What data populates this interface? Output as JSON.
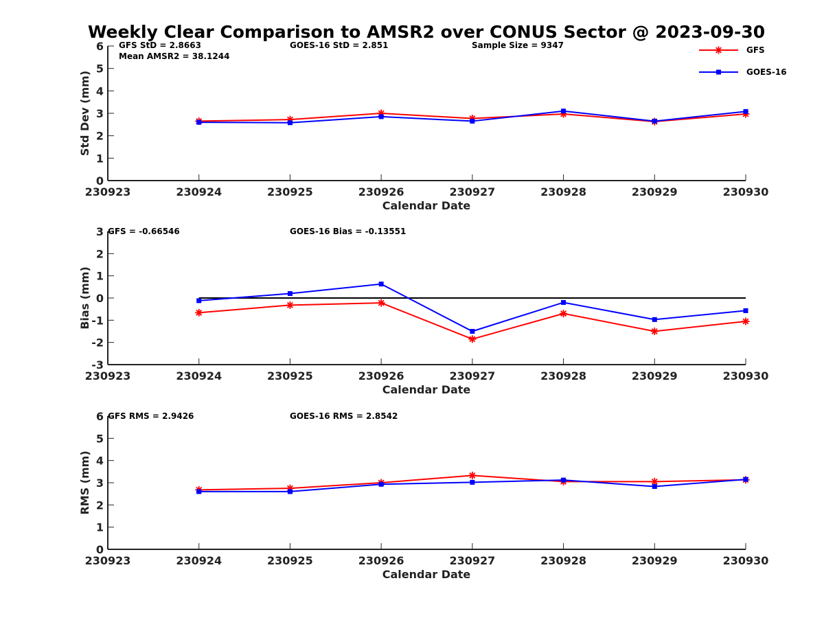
{
  "title": "Weekly Clear Comparison to AMSR2 over CONUS Sector @ 2023-09-30",
  "legend": [
    {
      "name": "GFS",
      "color": "#ff0000",
      "marker": "asterisk"
    },
    {
      "name": "GOES-16",
      "color": "#0000ff",
      "marker": "square"
    }
  ],
  "chart_data": [
    {
      "type": "line",
      "ylabel": "Std Dev (mm)",
      "xlabel": "Calendar Date",
      "x_ticks": [
        "230923",
        "230924",
        "230925",
        "230926",
        "230927",
        "230928",
        "230929",
        "230930"
      ],
      "ylim": [
        0,
        6
      ],
      "y_ticks": [
        "0",
        "1",
        "2",
        "3",
        "4",
        "5",
        "6"
      ],
      "stats": [
        "GFS StD = 2.8663",
        "Mean AMSR2 = 38.1244",
        "GOES-16 StD = 2.851",
        "Sample Size = 9347"
      ],
      "series": [
        {
          "name": "GFS",
          "values": [
            2.65,
            2.72,
            3.0,
            2.77,
            2.97,
            2.63,
            2.97
          ]
        },
        {
          "name": "GOES-16",
          "values": [
            2.6,
            2.58,
            2.85,
            2.65,
            3.1,
            2.65,
            3.08
          ]
        }
      ],
      "x": [
        "230924",
        "230925",
        "230926",
        "230927",
        "230928",
        "230929",
        "230930"
      ],
      "grid": false
    },
    {
      "type": "line",
      "ylabel": "Bias (mm)",
      "xlabel": "Calendar Date",
      "x_ticks": [
        "230923",
        "230924",
        "230925",
        "230926",
        "230927",
        "230928",
        "230929",
        "230930"
      ],
      "ylim": [
        -3,
        3
      ],
      "y_ticks": [
        "-3",
        "-2",
        "-1",
        "0",
        "1",
        "2",
        "3"
      ],
      "stats": [
        "GFS = -0.66546",
        "GOES-16 Bias  = -0.13551"
      ],
      "reference_line": 0,
      "series": [
        {
          "name": "GFS",
          "values": [
            -0.66,
            -0.32,
            -0.22,
            -1.85,
            -0.7,
            -1.5,
            -1.05
          ]
        },
        {
          "name": "GOES-16",
          "values": [
            -0.12,
            0.2,
            0.63,
            -1.5,
            -0.2,
            -0.97,
            -0.57
          ]
        }
      ],
      "x": [
        "230924",
        "230925",
        "230926",
        "230927",
        "230928",
        "230929",
        "230930"
      ],
      "grid": false
    },
    {
      "type": "line",
      "ylabel": "RMS (mm)",
      "xlabel": "Calendar Date",
      "x_ticks": [
        "230923",
        "230924",
        "230925",
        "230926",
        "230927",
        "230928",
        "230929",
        "230930"
      ],
      "ylim": [
        0,
        6
      ],
      "y_ticks": [
        "0",
        "1",
        "2",
        "3",
        "4",
        "5",
        "6"
      ],
      "stats": [
        "GFS RMS = 2.9426",
        "GOES-16 RMS = 2.8542"
      ],
      "series": [
        {
          "name": "GFS",
          "values": [
            2.68,
            2.75,
            3.0,
            3.33,
            3.05,
            3.05,
            3.13
          ]
        },
        {
          "name": "GOES-16",
          "values": [
            2.6,
            2.6,
            2.93,
            3.02,
            3.12,
            2.83,
            3.15
          ]
        }
      ],
      "x": [
        "230924",
        "230925",
        "230926",
        "230927",
        "230928",
        "230929",
        "230930"
      ],
      "grid": false
    }
  ]
}
